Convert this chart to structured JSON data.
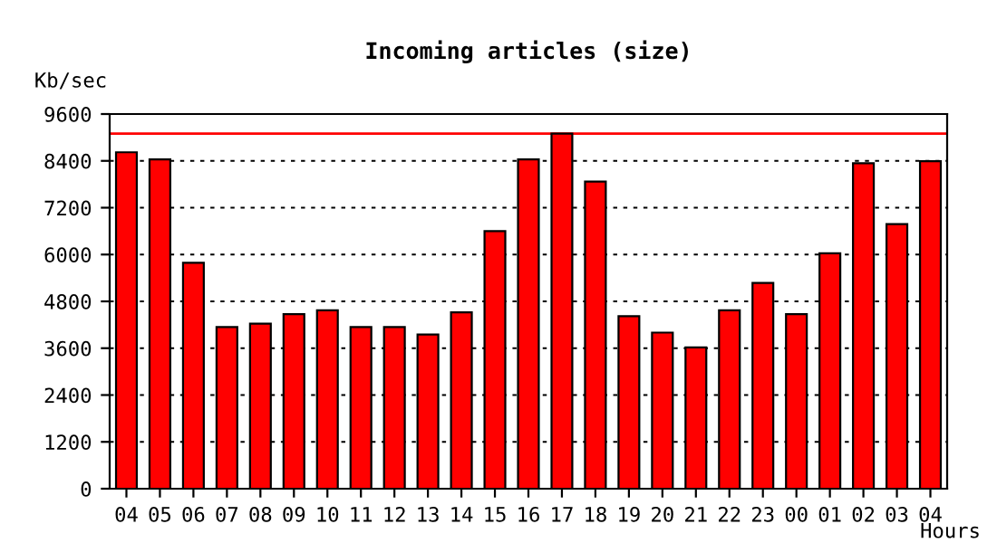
{
  "chart_data": {
    "type": "bar",
    "title": "Incoming articles (size)",
    "ylabel": "Kb/sec",
    "xlabel": "Hours",
    "categories": [
      "04",
      "05",
      "06",
      "07",
      "08",
      "09",
      "10",
      "11",
      "12",
      "13",
      "14",
      "15",
      "16",
      "17",
      "18",
      "19",
      "20",
      "21",
      "22",
      "23",
      "00",
      "01",
      "02",
      "03",
      "04"
    ],
    "values": [
      8620,
      8440,
      5790,
      4140,
      4230,
      4470,
      4570,
      4140,
      4140,
      3950,
      4520,
      6600,
      8440,
      9100,
      7870,
      4420,
      4000,
      3620,
      4570,
      5270,
      4470,
      6030,
      8340,
      6780,
      8390
    ],
    "color": "#ff0000",
    "ylim": [
      0,
      9600
    ],
    "yticks": [
      0,
      1200,
      2400,
      3600,
      4800,
      6000,
      7200,
      8400,
      9600
    ],
    "grid": "y",
    "ref_lines": [
      {
        "axis": "y",
        "value": 9100,
        "color": "#ff0000"
      }
    ]
  }
}
